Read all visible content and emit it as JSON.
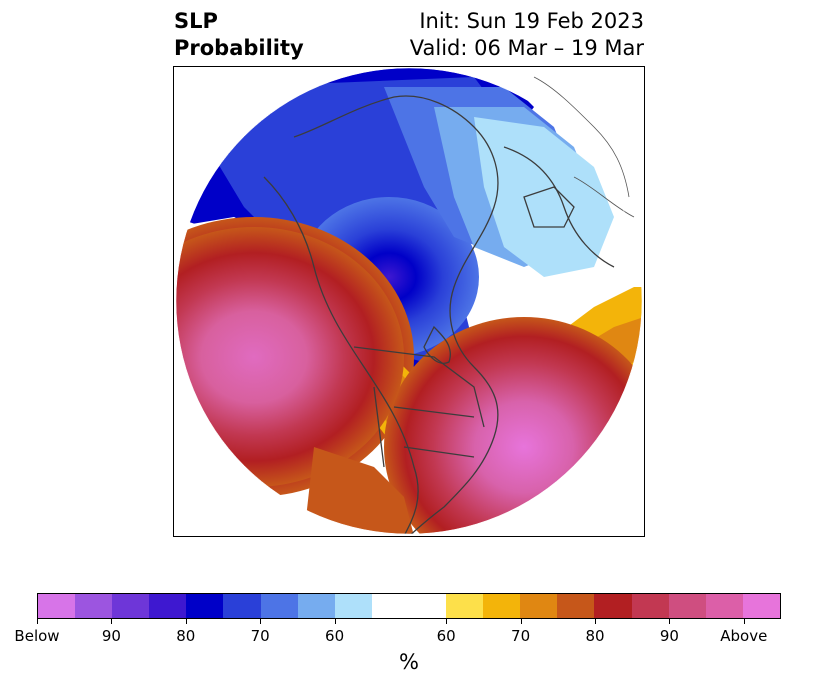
{
  "title": {
    "left_line1": "SLP",
    "left_line2": "Probability",
    "right_line1": "Init: Sun 19 Feb 2023",
    "right_line2": "Valid: 06 Mar – 19 Mar"
  },
  "map": {
    "projection": "north-polar",
    "region": "North America / North Pacific / Arctic",
    "features": [
      {
        "name": "Strong below-normal probability over Alaska, Yukon and the Arctic",
        "category": "below"
      },
      {
        "name": "Above-normal probability over the North Pacific",
        "category": "above"
      },
      {
        "name": "Above-normal probability over the eastern United States and western Atlantic",
        "category": "above"
      },
      {
        "name": "Above-normal probability over western Canada and the western United States",
        "category": "above"
      }
    ]
  },
  "colorbar": {
    "unit": "%",
    "colors": [
      "#d774e8",
      "#9c55e0",
      "#6e36d8",
      "#3e18d0",
      "#0000c8",
      "#2a40d8",
      "#4d74e6",
      "#76acef",
      "#aee0fa",
      "#ffffff",
      "#ffffff",
      "#fde04a",
      "#f3b40a",
      "#e08712",
      "#c6571a",
      "#b21f22",
      "#c23852",
      "#cf4e80",
      "#dc5fa8",
      "#e774db"
    ],
    "tick_labels": [
      "Below",
      "90",
      "80",
      "70",
      "60",
      "60",
      "70",
      "80",
      "90",
      "Above"
    ]
  }
}
